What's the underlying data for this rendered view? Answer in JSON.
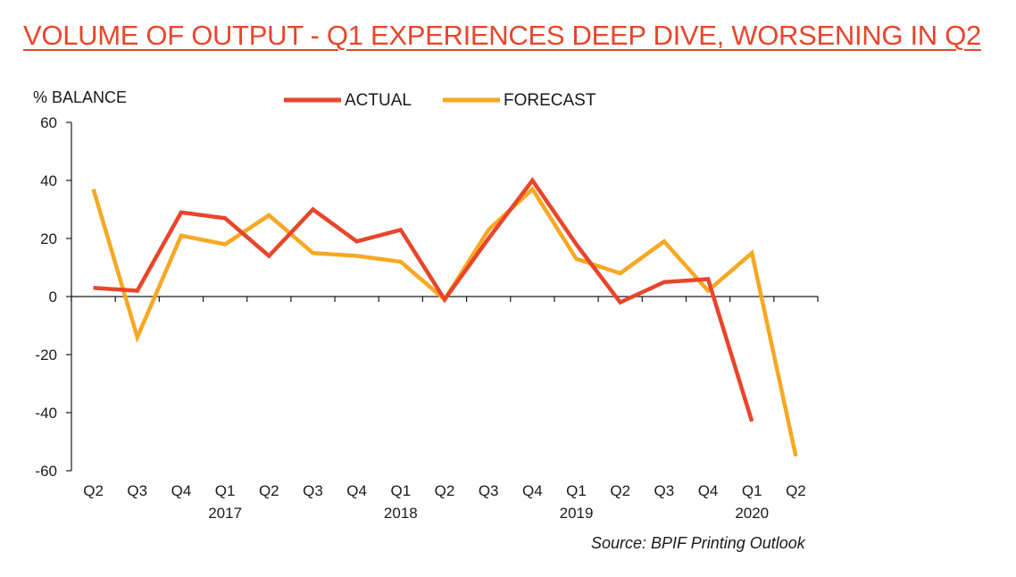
{
  "chart_data": {
    "type": "line",
    "title": "VOLUME OF OUTPUT - Q1 EXPERIENCES DEEP DIVE, WORSENING IN Q2",
    "ylabel": "% BALANCE",
    "xlabel": "",
    "ylim": [
      -60,
      60
    ],
    "yticks": [
      60,
      40,
      20,
      0,
      -20,
      -40,
      -60
    ],
    "categories": [
      "Q2",
      "Q3",
      "Q4",
      "Q1",
      "Q2",
      "Q3",
      "Q4",
      "Q1",
      "Q2",
      "Q3",
      "Q4",
      "Q1",
      "Q2",
      "Q3",
      "Q4",
      "Q1",
      "Q2"
    ],
    "year_labels": [
      {
        "index": 3,
        "label": "2017"
      },
      {
        "index": 7,
        "label": "2018"
      },
      {
        "index": 11,
        "label": "2019"
      },
      {
        "index": 15,
        "label": "2020"
      }
    ],
    "series": [
      {
        "name": "ACTUAL",
        "color": "#e8452b",
        "values": [
          3,
          2,
          29,
          27,
          14,
          30,
          19,
          23,
          -1,
          20,
          40,
          18,
          -2,
          5,
          6,
          -43,
          null
        ]
      },
      {
        "name": "FORECAST",
        "color": "#f7a823",
        "values": [
          37,
          -14,
          21,
          18,
          28,
          15,
          14,
          12,
          -1,
          23,
          37,
          13,
          8,
          19,
          2,
          15,
          -55
        ]
      }
    ],
    "legend_position": "top-center",
    "grid": false,
    "source": "Source: BPIF Printing Outlook"
  }
}
